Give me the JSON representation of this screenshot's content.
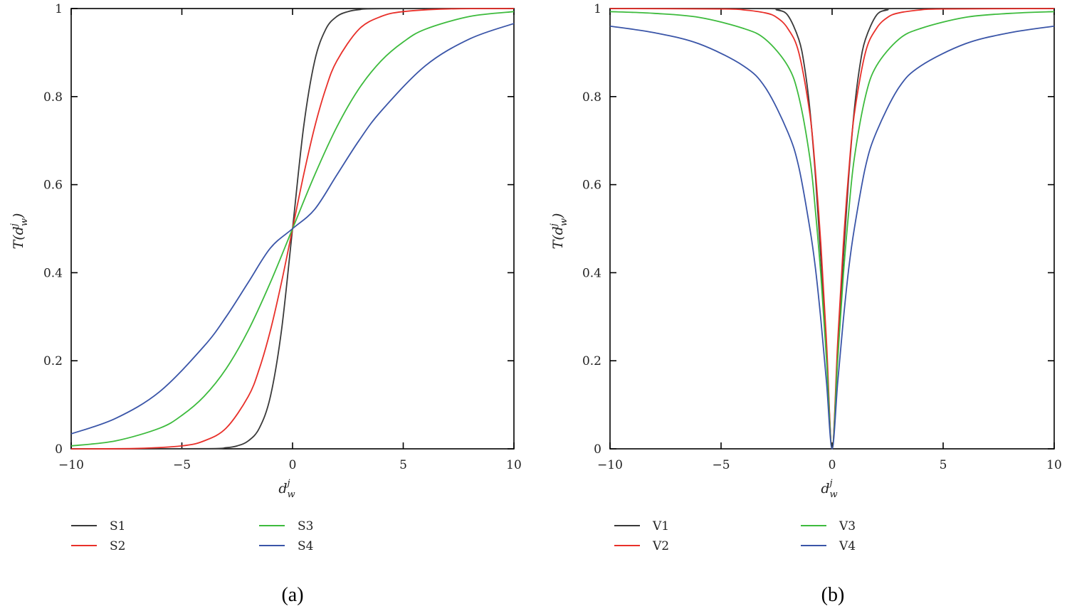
{
  "chart_data": [
    {
      "type": "line",
      "panel": "(a)",
      "xlabel": "d_w^j",
      "ylabel": "T(d_w^j)",
      "xlim": [
        -10,
        10
      ],
      "ylim": [
        0,
        1
      ],
      "xticks": [
        "−10",
        "−5",
        "0",
        "5",
        "10"
      ],
      "xtick_values": [
        -10,
        -5,
        0,
        5,
        10
      ],
      "yticks": [
        "0",
        "0.2",
        "0.4",
        "0.6",
        "0.8",
        "1"
      ],
      "ytick_values": [
        0,
        0.2,
        0.4,
        0.6,
        0.8,
        1
      ],
      "grid": false,
      "legend_position": "bottom",
      "series": [
        {
          "name": "S1",
          "color": "#3a3a3a",
          "x": [
            -10,
            -4,
            -3,
            -2.5,
            -2,
            -1.5,
            -1,
            -0.5,
            0,
            0.5,
            1,
            1.5,
            2,
            2.5,
            3,
            4,
            10
          ],
          "y": [
            0,
            0.0003,
            0.0025,
            0.0067,
            0.018,
            0.047,
            0.119,
            0.269,
            0.5,
            0.731,
            0.881,
            0.953,
            0.982,
            0.993,
            0.9975,
            0.9997,
            1
          ]
        },
        {
          "name": "S2",
          "color": "#e8302a",
          "x": [
            -10,
            -7,
            -5,
            -4,
            -3,
            -2,
            -1.5,
            -1,
            -0.5,
            0,
            0.5,
            1,
            1.5,
            2,
            3,
            4,
            5,
            7,
            10
          ],
          "y": [
            0,
            0.0009,
            0.0067,
            0.018,
            0.047,
            0.119,
            0.182,
            0.269,
            0.378,
            0.5,
            0.622,
            0.731,
            0.818,
            0.881,
            0.953,
            0.982,
            0.993,
            0.9991,
            1
          ]
        },
        {
          "name": "S3",
          "color": "#3dbb3d",
          "x": [
            -10,
            -8,
            -6,
            -5,
            -4,
            -3,
            -2,
            -1,
            0,
            1,
            2,
            3,
            4,
            5,
            6,
            8,
            10
          ],
          "y": [
            0.0067,
            0.018,
            0.047,
            0.076,
            0.119,
            0.182,
            0.269,
            0.378,
            0.5,
            0.622,
            0.731,
            0.818,
            0.881,
            0.924,
            0.953,
            0.982,
            0.993
          ]
        },
        {
          "name": "S4",
          "color": "#3a55a8",
          "x": [
            -10,
            -8,
            -6,
            -4,
            -3,
            -2,
            -1,
            0,
            1,
            2,
            3,
            4,
            6,
            8,
            10
          ],
          "y": [
            0.034,
            0.069,
            0.13,
            0.233,
            0.3,
            0.378,
            0.456,
            0.5,
            0.544,
            0.622,
            0.7,
            0.767,
            0.87,
            0.931,
            0.966
          ]
        }
      ],
      "legend": {
        "col1": [
          "S1",
          "S2"
        ],
        "col2": [
          "S3",
          "S4"
        ]
      }
    },
    {
      "type": "line",
      "panel": "(b)",
      "xlabel": "d_w^j",
      "ylabel": "T(d_w^j)",
      "xlim": [
        -10,
        10
      ],
      "ylim": [
        0,
        1
      ],
      "xticks": [
        "−10",
        "−5",
        "0",
        "5",
        "10"
      ],
      "xtick_values": [
        -10,
        -5,
        0,
        5,
        10
      ],
      "yticks": [
        "0",
        "0.2",
        "0.4",
        "0.6",
        "0.8",
        "1"
      ],
      "ytick_values": [
        0,
        0.2,
        0.4,
        0.6,
        0.8,
        1
      ],
      "grid": false,
      "legend_position": "bottom",
      "series": [
        {
          "name": "V1",
          "color": "#3a3a3a",
          "x": [
            -10,
            -3,
            -2.5,
            -2,
            -1.5,
            -1.25,
            -1,
            -0.75,
            -0.5,
            -0.25,
            0,
            0.25,
            0.5,
            0.75,
            1,
            1.25,
            1.5,
            2,
            2.5,
            3,
            10
          ],
          "y": [
            1,
            1,
            0.997,
            0.985,
            0.93,
            0.87,
            0.77,
            0.62,
            0.43,
            0.22,
            0,
            0.22,
            0.43,
            0.62,
            0.77,
            0.87,
            0.93,
            0.985,
            0.997,
            1,
            1
          ]
        },
        {
          "name": "V2",
          "color": "#e8302a",
          "x": [
            -10,
            -5,
            -4,
            -3,
            -2.5,
            -2,
            -1.5,
            -1,
            -0.75,
            -0.5,
            -0.25,
            0,
            0.25,
            0.5,
            0.75,
            1,
            1.5,
            2,
            2.5,
            3,
            4,
            5,
            10
          ],
          "y": [
            1,
            0.999,
            0.997,
            0.99,
            0.98,
            0.955,
            0.9,
            0.76,
            0.63,
            0.46,
            0.24,
            0,
            0.24,
            0.46,
            0.63,
            0.76,
            0.9,
            0.955,
            0.98,
            0.99,
            0.997,
            0.999,
            1
          ]
        },
        {
          "name": "V3",
          "color": "#3dbb3d",
          "x": [
            -10,
            -8,
            -6,
            -4,
            -3,
            -2,
            -1.5,
            -1,
            -0.75,
            -0.5,
            -0.25,
            0,
            0.25,
            0.5,
            0.75,
            1,
            1.5,
            2,
            3,
            4,
            6,
            8,
            10
          ],
          "y": [
            0.993,
            0.989,
            0.98,
            0.955,
            0.93,
            0.87,
            0.8,
            0.66,
            0.54,
            0.39,
            0.2,
            0,
            0.2,
            0.39,
            0.54,
            0.66,
            0.8,
            0.87,
            0.93,
            0.955,
            0.98,
            0.989,
            0.993
          ]
        },
        {
          "name": "V4",
          "color": "#3a55a8",
          "x": [
            -10,
            -8,
            -6,
            -4,
            -3,
            -2,
            -1.5,
            -1,
            -0.75,
            -0.5,
            -0.25,
            0,
            0.25,
            0.5,
            0.75,
            1,
            1.5,
            2,
            3,
            4,
            6,
            8,
            10
          ],
          "y": [
            0.96,
            0.945,
            0.92,
            0.87,
            0.82,
            0.72,
            0.64,
            0.5,
            0.41,
            0.29,
            0.15,
            0,
            0.15,
            0.29,
            0.41,
            0.5,
            0.64,
            0.72,
            0.82,
            0.87,
            0.92,
            0.945,
            0.96
          ]
        }
      ],
      "legend": {
        "col1": [
          "V1",
          "V2"
        ],
        "col2": [
          "V3",
          "V4"
        ]
      }
    }
  ]
}
